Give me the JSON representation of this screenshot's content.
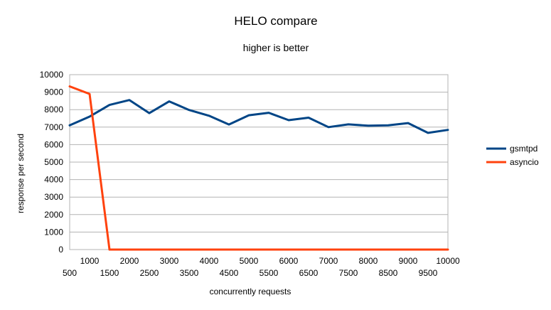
{
  "chart_data": {
    "type": "line",
    "title": "HELO compare",
    "subtitle": "higher is better",
    "xlabel": "concurrently requests",
    "ylabel": "response per second",
    "x": [
      500,
      1000,
      1500,
      2000,
      2500,
      3000,
      3500,
      4000,
      4500,
      5000,
      5500,
      6000,
      6500,
      7000,
      7500,
      8000,
      8500,
      9000,
      9500,
      10000
    ],
    "xticks": [
      "500",
      "1000",
      "1500",
      "2000",
      "2500",
      "3000",
      "3500",
      "4000",
      "4500",
      "5000",
      "5500",
      "6000",
      "6500",
      "7000",
      "7500",
      "8000",
      "8500",
      "9000",
      "9500",
      "10000"
    ],
    "ylim": [
      0,
      10000
    ],
    "yticks": [
      "0",
      "1000",
      "2000",
      "3000",
      "4000",
      "5000",
      "6000",
      "7000",
      "8000",
      "9000",
      "10000"
    ],
    "grid": true,
    "legend_position": "right",
    "series": [
      {
        "name": "gsmtpd",
        "color": "#004586",
        "values": [
          7100,
          7600,
          8270,
          8550,
          7800,
          8470,
          7980,
          7650,
          7150,
          7680,
          7820,
          7400,
          7540,
          7000,
          7160,
          7080,
          7100,
          7230,
          6670,
          6840
        ]
      },
      {
        "name": "asyncio",
        "color": "#ff420e",
        "values": [
          9330,
          8900,
          0,
          0,
          0,
          0,
          0,
          0,
          0,
          0,
          0,
          0,
          0,
          0,
          0,
          0,
          0,
          0,
          0,
          0
        ]
      }
    ]
  }
}
